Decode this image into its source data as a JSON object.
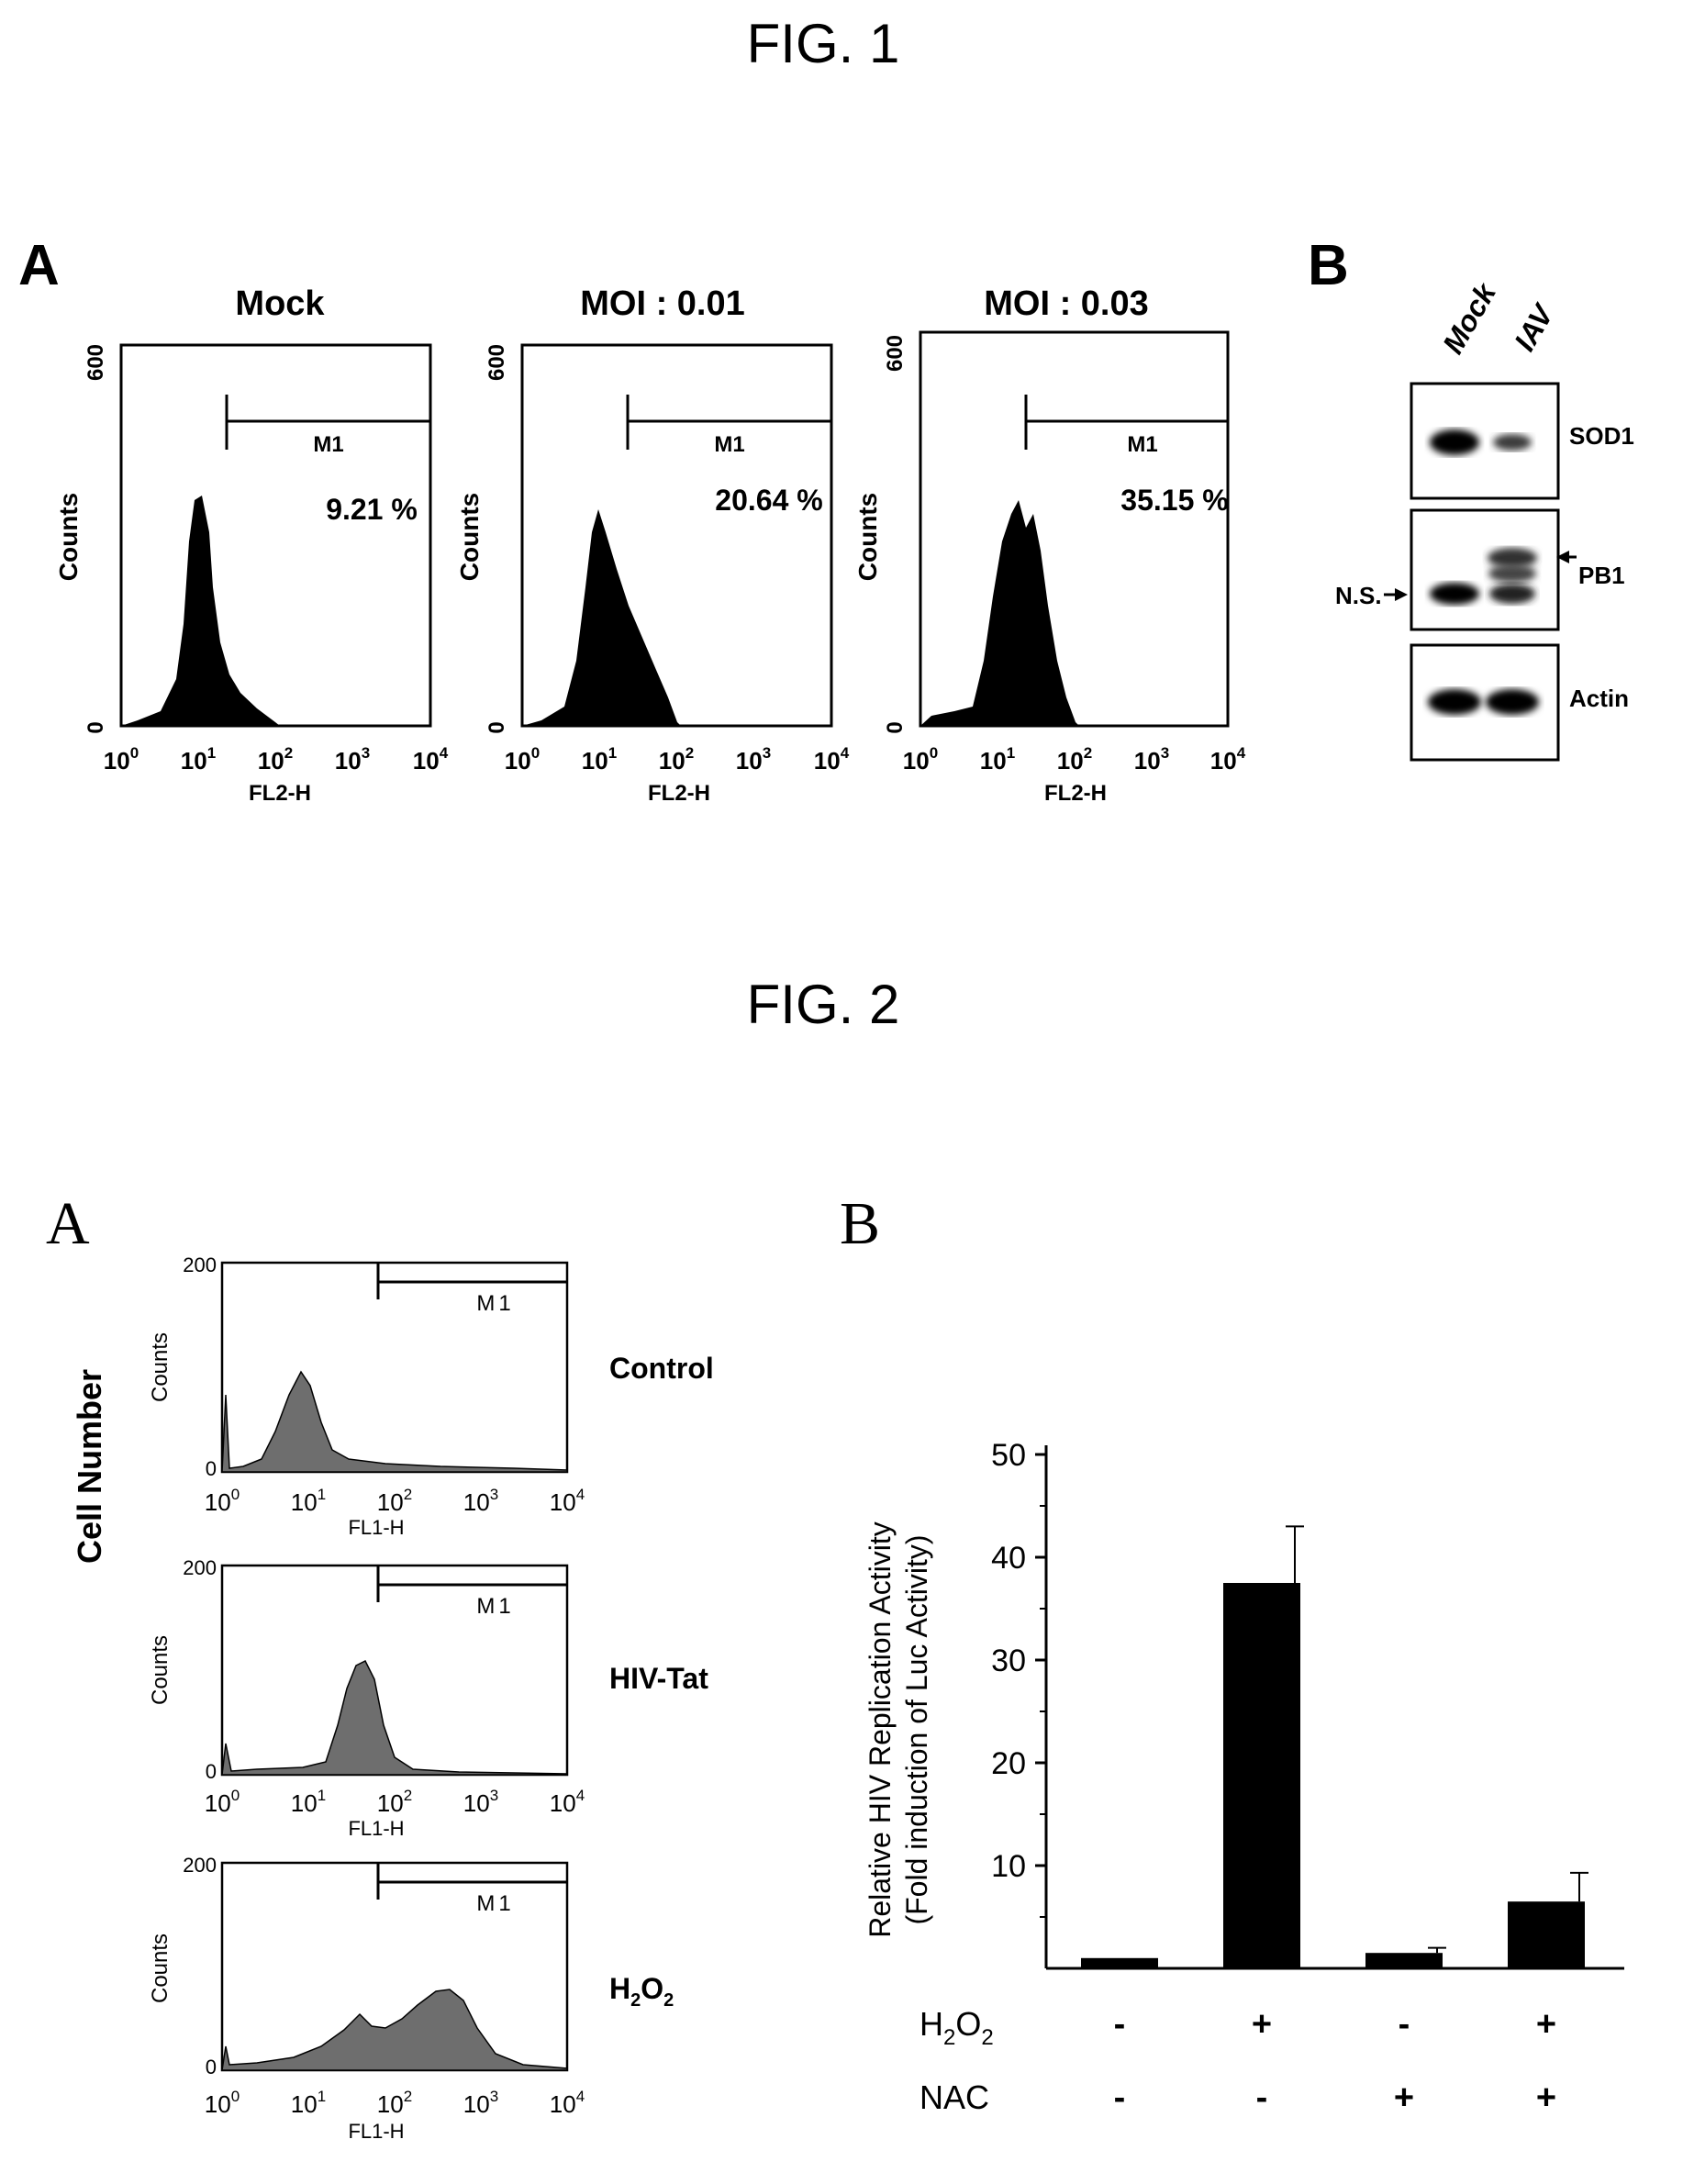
{
  "fig1": {
    "title": "FIG. 1",
    "panel_a": {
      "label": "A",
      "plots": [
        {
          "title": "Mock",
          "gate": "M1",
          "percent": "9.21 %",
          "y_max": "600",
          "y_min": "0",
          "xlabel": "FL2-H",
          "ylabel": "Counts"
        },
        {
          "title": "MOI : 0.01",
          "gate": "M1",
          "percent": "20.64 %",
          "y_max": "600",
          "y_min": "0",
          "xlabel": "FL2-H",
          "ylabel": "Counts"
        },
        {
          "title": "MOI : 0.03",
          "gate": "M1",
          "percent": "35.15 %",
          "y_max": "600",
          "y_min": "0",
          "xlabel": "FL2-H",
          "ylabel": "Counts"
        }
      ]
    },
    "panel_b": {
      "label": "B",
      "lanes": [
        "Mock",
        "IAV"
      ],
      "blots": [
        "SOD1",
        "PB1",
        "Actin"
      ],
      "ns_label": "N.S."
    }
  },
  "fig2": {
    "title": "FIG. 2",
    "panel_a": {
      "label": "A",
      "ylabel": "Cell Number",
      "plots": [
        {
          "condition": "Control",
          "gate": "M1",
          "y_max": "200",
          "y_min": "0",
          "xlabel": "FL1-H",
          "ylabel": "Counts"
        },
        {
          "condition": "HIV-Tat",
          "gate": "M1",
          "y_max": "200",
          "y_min": "0",
          "xlabel": "FL1-H",
          "ylabel": "Counts"
        },
        {
          "condition": "H2O2",
          "gate": "M1",
          "y_max": "200",
          "y_min": "0",
          "xlabel": "FL1-H",
          "ylabel": "Counts"
        }
      ]
    },
    "panel_b": {
      "label": "B",
      "row_labels": [
        "H2O2",
        "NAC"
      ],
      "h2o2": [
        "-",
        "+",
        "-",
        "+"
      ],
      "nac": [
        "-",
        "-",
        "+",
        "+"
      ]
    }
  },
  "chart_data": [
    {
      "type": "bar",
      "categories": [
        "1",
        "2",
        "3",
        "4"
      ],
      "values": [
        1,
        37.5,
        1.5,
        6.5
      ],
      "errors": [
        0,
        5.5,
        0.5,
        2.8
      ],
      "ylabel": "Relative HIV Replication Activity (Fold induction of Luc Activity)",
      "ylabel_line1": "Relative HIV Replication Activity",
      "ylabel_line2": "(Fold induction of Luc Activity)",
      "ylim": [
        0,
        50
      ],
      "yticks": [
        10,
        20,
        30,
        40,
        50
      ],
      "ytick_labels": [
        "10",
        "20",
        "30",
        "40",
        "50"
      ]
    }
  ],
  "colors": {
    "ink": "#000000",
    "histogram_gray": "#6e6e6e",
    "paper": "#ffffff"
  }
}
